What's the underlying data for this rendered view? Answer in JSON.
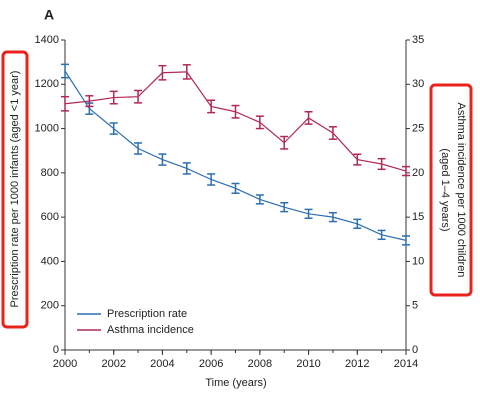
{
  "chart_data": {
    "type": "line",
    "panel_label": "A",
    "x_label": "Time (years)",
    "y_label": "Prescription rate per 1000 infants (aged <1 year)",
    "y2_label": "Asthma incidence per 1000 children (aged 1–4 years)",
    "x": [
      2000,
      2001,
      2002,
      2003,
      2004,
      2005,
      2006,
      2007,
      2008,
      2009,
      2010,
      2011,
      2012,
      2013,
      2014
    ],
    "xlim": [
      2000,
      2014
    ],
    "xticks": [
      2000,
      2002,
      2004,
      2006,
      2008,
      2010,
      2012,
      2014
    ],
    "ylim": [
      0,
      1400
    ],
    "yticks": [
      0,
      200,
      400,
      600,
      800,
      1000,
      1200,
      1400
    ],
    "y2lim": [
      0,
      35
    ],
    "y2ticks": [
      0,
      5,
      10,
      15,
      20,
      25,
      30,
      35
    ],
    "legend": "lower left",
    "series": [
      {
        "name": "Prescription rate",
        "color": "#2c6fb0",
        "axis": "y",
        "values": [
          1260,
          1090,
          1000,
          910,
          860,
          820,
          770,
          730,
          680,
          645,
          615,
          600,
          570,
          520,
          495
        ],
        "errors": [
          30,
          25,
          25,
          25,
          25,
          25,
          25,
          22,
          20,
          20,
          20,
          20,
          20,
          20,
          20
        ]
      },
      {
        "name": "Asthma incidence",
        "color": "#b0285a",
        "axis": "y2",
        "values": [
          27.8,
          28.1,
          28.5,
          28.6,
          31.3,
          31.4,
          27.5,
          26.9,
          25.7,
          23.4,
          26.2,
          24.5,
          21.5,
          21.0,
          20.2
        ],
        "errors": [
          0.8,
          0.6,
          0.7,
          0.7,
          0.8,
          0.8,
          0.7,
          0.7,
          0.7,
          0.7,
          0.7,
          0.7,
          0.6,
          0.6,
          0.5
        ]
      }
    ]
  }
}
